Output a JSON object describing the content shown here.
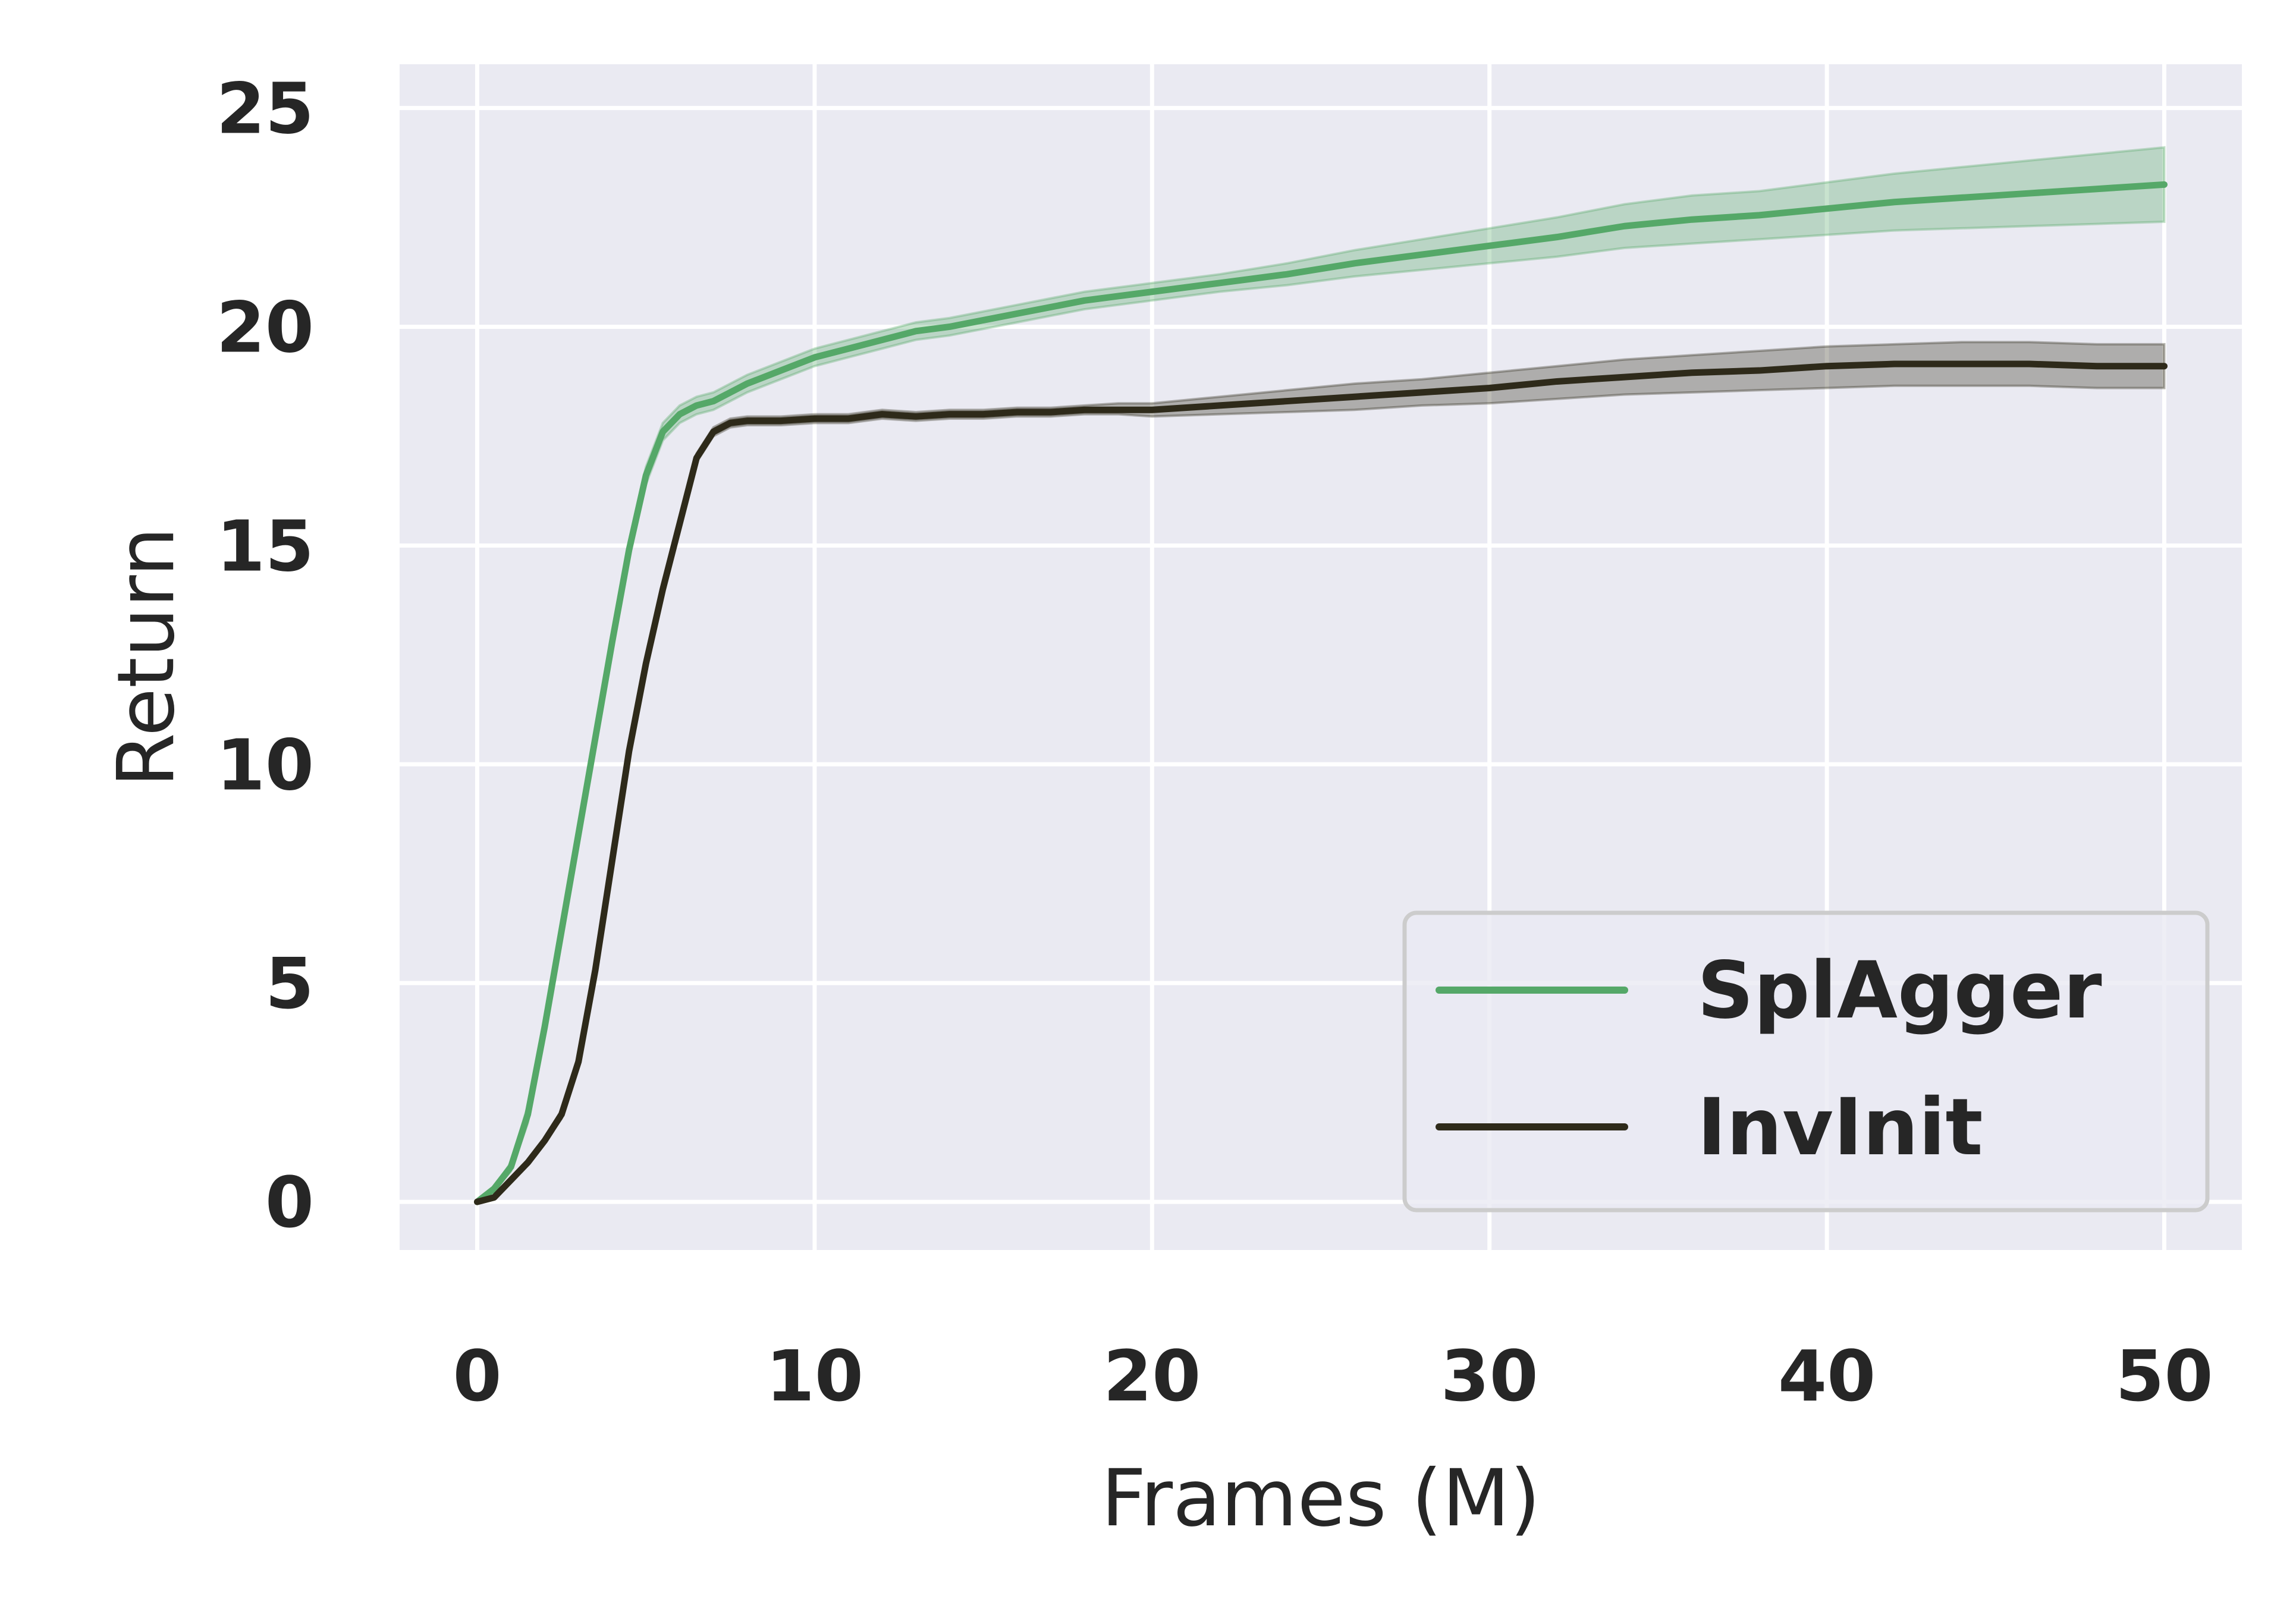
{
  "chart_data": {
    "type": "line",
    "title": "",
    "xlabel": "Frames (M)",
    "ylabel": "Return",
    "xlim": [
      -2.3,
      52.3
    ],
    "ylim": [
      -1.1,
      26.0
    ],
    "xticks": [
      0,
      10,
      20,
      30,
      40,
      50
    ],
    "yticks": [
      0,
      5,
      10,
      15,
      20,
      25
    ],
    "grid": true,
    "background": "#eaeaf2",
    "legend": {
      "position": "lower-right"
    },
    "series": [
      {
        "name": "SplAgger",
        "color": "#55a868",
        "x": [
          0,
          0.5,
          1,
          1.5,
          2,
          2.5,
          3,
          3.5,
          4,
          4.5,
          5,
          5.5,
          6,
          6.5,
          7,
          7.5,
          8,
          9,
          10,
          11,
          12,
          13,
          14,
          15,
          16,
          17,
          18,
          19,
          20,
          22,
          24,
          26,
          28,
          30,
          32,
          34,
          36,
          38,
          40,
          42,
          44,
          46,
          48,
          50
        ],
        "y": [
          0,
          0.3,
          0.8,
          2.0,
          4.0,
          6.2,
          8.4,
          10.6,
          12.8,
          14.9,
          16.6,
          17.6,
          18.0,
          18.2,
          18.3,
          18.5,
          18.7,
          19.0,
          19.3,
          19.5,
          19.7,
          19.9,
          20.0,
          20.15,
          20.3,
          20.45,
          20.6,
          20.7,
          20.8,
          21.0,
          21.2,
          21.45,
          21.65,
          21.85,
          22.05,
          22.3,
          22.45,
          22.55,
          22.7,
          22.85,
          22.95,
          23.05,
          23.15,
          23.25
        ],
        "lower": [
          0,
          0.25,
          0.7,
          1.8,
          3.8,
          6.0,
          8.2,
          10.4,
          12.6,
          14.7,
          16.4,
          17.4,
          17.8,
          18.0,
          18.1,
          18.3,
          18.5,
          18.8,
          19.1,
          19.3,
          19.5,
          19.7,
          19.8,
          19.95,
          20.1,
          20.25,
          20.4,
          20.5,
          20.6,
          20.8,
          20.95,
          21.15,
          21.3,
          21.45,
          21.6,
          21.8,
          21.9,
          22.0,
          22.1,
          22.2,
          22.25,
          22.3,
          22.35,
          22.4
        ],
        "upper": [
          0,
          0.35,
          0.9,
          2.2,
          4.2,
          6.4,
          8.6,
          10.8,
          13.0,
          15.1,
          16.8,
          17.8,
          18.2,
          18.4,
          18.5,
          18.7,
          18.9,
          19.2,
          19.5,
          19.7,
          19.9,
          20.1,
          20.2,
          20.35,
          20.5,
          20.65,
          20.8,
          20.9,
          21.0,
          21.2,
          21.45,
          21.75,
          22.0,
          22.25,
          22.5,
          22.8,
          23.0,
          23.1,
          23.3,
          23.5,
          23.65,
          23.8,
          23.95,
          24.1
        ]
      },
      {
        "name": "InvInit",
        "color": "#2e2a1a",
        "x": [
          0,
          0.5,
          1,
          1.5,
          2,
          2.5,
          3,
          3.5,
          4,
          4.5,
          5,
          5.5,
          6,
          6.5,
          7,
          7.5,
          8,
          9,
          10,
          11,
          12,
          13,
          14,
          15,
          16,
          17,
          18,
          19,
          20,
          22,
          24,
          26,
          28,
          30,
          32,
          34,
          36,
          38,
          40,
          42,
          44,
          46,
          48,
          50
        ],
        "y": [
          0,
          0.1,
          0.5,
          0.9,
          1.4,
          2.0,
          3.2,
          5.3,
          7.8,
          10.3,
          12.3,
          14.0,
          15.5,
          17.0,
          17.6,
          17.8,
          17.85,
          17.85,
          17.9,
          17.9,
          18.0,
          17.95,
          18.0,
          18.0,
          18.05,
          18.05,
          18.1,
          18.1,
          18.1,
          18.2,
          18.3,
          18.4,
          18.5,
          18.6,
          18.75,
          18.85,
          18.95,
          19.0,
          19.1,
          19.15,
          19.15,
          19.15,
          19.1,
          19.1
        ],
        "lower": [
          0,
          0.08,
          0.45,
          0.85,
          1.35,
          1.9,
          3.1,
          5.2,
          7.7,
          10.2,
          12.2,
          13.9,
          15.4,
          16.9,
          17.5,
          17.7,
          17.75,
          17.75,
          17.8,
          17.8,
          17.9,
          17.85,
          17.9,
          17.9,
          17.95,
          17.95,
          18.0,
          18.0,
          17.95,
          18.0,
          18.05,
          18.1,
          18.2,
          18.25,
          18.35,
          18.45,
          18.5,
          18.55,
          18.6,
          18.65,
          18.65,
          18.65,
          18.6,
          18.6
        ],
        "upper": [
          0,
          0.12,
          0.55,
          0.95,
          1.45,
          2.1,
          3.3,
          5.4,
          7.9,
          10.4,
          12.4,
          14.1,
          15.6,
          17.1,
          17.7,
          17.9,
          17.95,
          17.95,
          18.0,
          18.0,
          18.1,
          18.05,
          18.1,
          18.1,
          18.15,
          18.15,
          18.2,
          18.25,
          18.25,
          18.4,
          18.55,
          18.7,
          18.8,
          18.95,
          19.1,
          19.25,
          19.35,
          19.45,
          19.55,
          19.6,
          19.65,
          19.65,
          19.6,
          19.6
        ]
      }
    ]
  }
}
